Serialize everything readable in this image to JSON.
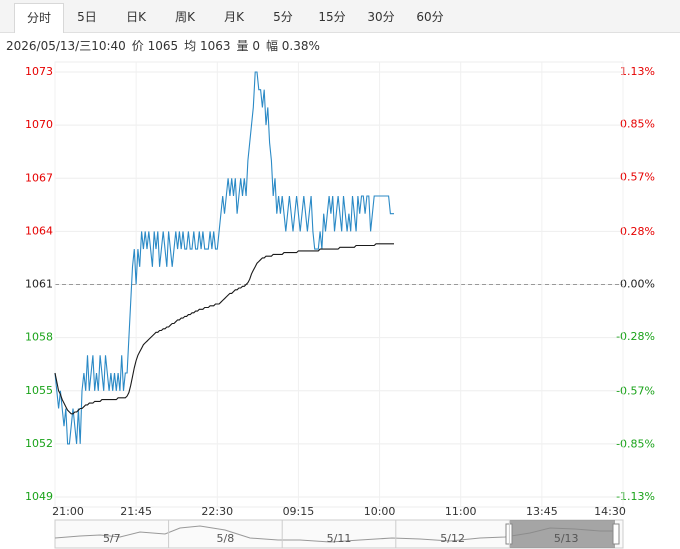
{
  "tabs": [
    "分时",
    "5日",
    "日K",
    "周K",
    "月K",
    "5分",
    "15分",
    "30分",
    "60分"
  ],
  "chart_data": {
    "type": "line",
    "info": [
      "2026/05/13/三10:40",
      "价 1065",
      "均 1063",
      "量 0",
      "幅 0.38%"
    ],
    "xlim": [
      0,
      315
    ],
    "xticks": [
      {
        "value": 0,
        "label": "21:00"
      },
      {
        "value": 45,
        "label": "21:45"
      },
      {
        "value": 90,
        "label": "22:30"
      },
      {
        "value": 135,
        "label": "09:15"
      },
      {
        "value": 180,
        "label": "10:00"
      },
      {
        "value": 225,
        "label": "11:00"
      },
      {
        "value": 270,
        "label": "13:45"
      },
      {
        "value": 315,
        "label": "14:30"
      }
    ],
    "ylim": [
      1049,
      1073
    ],
    "yticks": [
      1073,
      1070,
      1067,
      1064,
      1061,
      1058,
      1055,
      1052,
      1049
    ],
    "y2lim": [
      -1.13,
      1.13
    ],
    "y2ticks": [
      {
        "value": 1.13,
        "label": "1.13%"
      },
      {
        "value": 0.85,
        "label": "0.85%"
      },
      {
        "value": 0.57,
        "label": "0.57%"
      },
      {
        "value": 0.28,
        "label": "0.28%"
      },
      {
        "value": 0,
        "label": "0.00%"
      },
      {
        "value": -0.28,
        "label": "-0.28%"
      },
      {
        "value": -0.57,
        "label": "-0.57%"
      },
      {
        "value": -0.85,
        "label": "-0.85%"
      },
      {
        "value": -1.13,
        "label": "-1.13%"
      }
    ],
    "up_color": "#e60000",
    "down_color": "#1aa31a",
    "series": [
      {
        "color": "#2b8ac6",
        "values": [
          1056,
          1055,
          1054,
          1055,
          1054,
          1053,
          1054,
          1052,
          1052,
          1053,
          1054,
          1053,
          1052,
          1054,
          1052,
          1055,
          1056,
          1055,
          1057,
          1055,
          1056,
          1057,
          1055,
          1056,
          1055,
          1057,
          1056,
          1055,
          1057,
          1056,
          1055,
          1056,
          1055,
          1056,
          1055,
          1056,
          1055,
          1057,
          1055,
          1056,
          1056,
          1058,
          1060,
          1062,
          1063,
          1061,
          1063,
          1062,
          1064,
          1063,
          1064,
          1063,
          1064,
          1063,
          1062,
          1064,
          1063,
          1064,
          1062,
          1063,
          1064,
          1063,
          1062,
          1064,
          1063,
          1062,
          1063,
          1064,
          1063,
          1064,
          1063,
          1064,
          1063,
          1063,
          1064,
          1063,
          1063,
          1064,
          1063,
          1063,
          1064,
          1063,
          1064,
          1063,
          1063,
          1063,
          1064,
          1063,
          1064,
          1063,
          1063,
          1064,
          1065,
          1066,
          1065,
          1066,
          1067,
          1066,
          1067,
          1066,
          1067,
          1065,
          1066,
          1067,
          1066,
          1067,
          1066,
          1068,
          1069,
          1070,
          1071,
          1073,
          1073,
          1072,
          1072,
          1071,
          1072,
          1070,
          1071,
          1069,
          1068,
          1066,
          1067,
          1065,
          1066,
          1065,
          1066,
          1065,
          1064,
          1065,
          1066,
          1065,
          1064,
          1065,
          1066,
          1065,
          1064,
          1065,
          1066,
          1065,
          1064,
          1065,
          1066,
          1064,
          1063,
          1063,
          1063,
          1064,
          1063,
          1065,
          1064,
          1065,
          1066,
          1065,
          1066,
          1064,
          1065,
          1066,
          1065,
          1064,
          1066,
          1065,
          1064,
          1065,
          1064,
          1066,
          1065,
          1064,
          1066,
          1065,
          1066,
          1066,
          1065,
          1066,
          1066,
          1064,
          1065,
          1066,
          1066,
          1066,
          1066,
          1066,
          1066,
          1066,
          1066,
          1066,
          1065,
          1065,
          1065
        ]
      },
      {
        "color": "#1a1a1a",
        "values": [
          1056,
          1055.5,
          1055,
          1054.8,
          1054.5,
          1054.3,
          1054.1,
          1053.9,
          1053.8,
          1053.7,
          1053.7,
          1053.8,
          1053.8,
          1053.9,
          1054,
          1054,
          1054.1,
          1054.2,
          1054.2,
          1054.3,
          1054.3,
          1054.3,
          1054.4,
          1054.4,
          1054.4,
          1054.4,
          1054.5,
          1054.5,
          1054.5,
          1054.5,
          1054.5,
          1054.5,
          1054.5,
          1054.5,
          1054.5,
          1054.6,
          1054.6,
          1054.6,
          1054.6,
          1054.6,
          1054.7,
          1054.9,
          1055.3,
          1055.8,
          1056.3,
          1056.7,
          1057,
          1057.2,
          1057.4,
          1057.6,
          1057.7,
          1057.8,
          1057.9,
          1058,
          1058.1,
          1058.2,
          1058.3,
          1058.3,
          1058.4,
          1058.4,
          1058.5,
          1058.5,
          1058.6,
          1058.6,
          1058.7,
          1058.8,
          1058.8,
          1058.9,
          1059,
          1059,
          1059.1,
          1059.1,
          1059.2,
          1059.2,
          1059.3,
          1059.3,
          1059.4,
          1059.4,
          1059.5,
          1059.5,
          1059.6,
          1059.6,
          1059.6,
          1059.7,
          1059.7,
          1059.7,
          1059.8,
          1059.8,
          1059.8,
          1059.9,
          1059.9,
          1059.9,
          1060,
          1060.1,
          1060.2,
          1060.3,
          1060.4,
          1060.5,
          1060.5,
          1060.6,
          1060.7,
          1060.7,
          1060.8,
          1060.8,
          1060.9,
          1060.9,
          1061,
          1061.1,
          1061.3,
          1061.6,
          1061.8,
          1062,
          1062.2,
          1062.3,
          1062.4,
          1062.5,
          1062.5,
          1062.6,
          1062.6,
          1062.6,
          1062.6,
          1062.7,
          1062.7,
          1062.7,
          1062.7,
          1062.7,
          1062.7,
          1062.8,
          1062.8,
          1062.8,
          1062.8,
          1062.8,
          1062.8,
          1062.8,
          1062.8,
          1062.9,
          1062.9,
          1062.9,
          1062.9,
          1062.9,
          1062.9,
          1062.9,
          1062.9,
          1062.9,
          1062.9,
          1062.9,
          1062.9,
          1063,
          1063,
          1063,
          1063,
          1063,
          1063,
          1063,
          1063,
          1063,
          1063,
          1063,
          1063.1,
          1063.1,
          1063.1,
          1063.1,
          1063.1,
          1063.1,
          1063.1,
          1063.1,
          1063.1,
          1063.2,
          1063.2,
          1063.2,
          1063.2,
          1063.2,
          1063.2,
          1063.2,
          1063.2,
          1063.2,
          1063.2,
          1063.2,
          1063.3,
          1063.3,
          1063.3,
          1063.3,
          1063.3,
          1063.3,
          1063.3,
          1063.3,
          1063.3,
          1063.3,
          1063.3
        ]
      }
    ],
    "navigator": [
      "5/7",
      "5/8",
      "5/11",
      "5/12",
      "5/13"
    ]
  }
}
